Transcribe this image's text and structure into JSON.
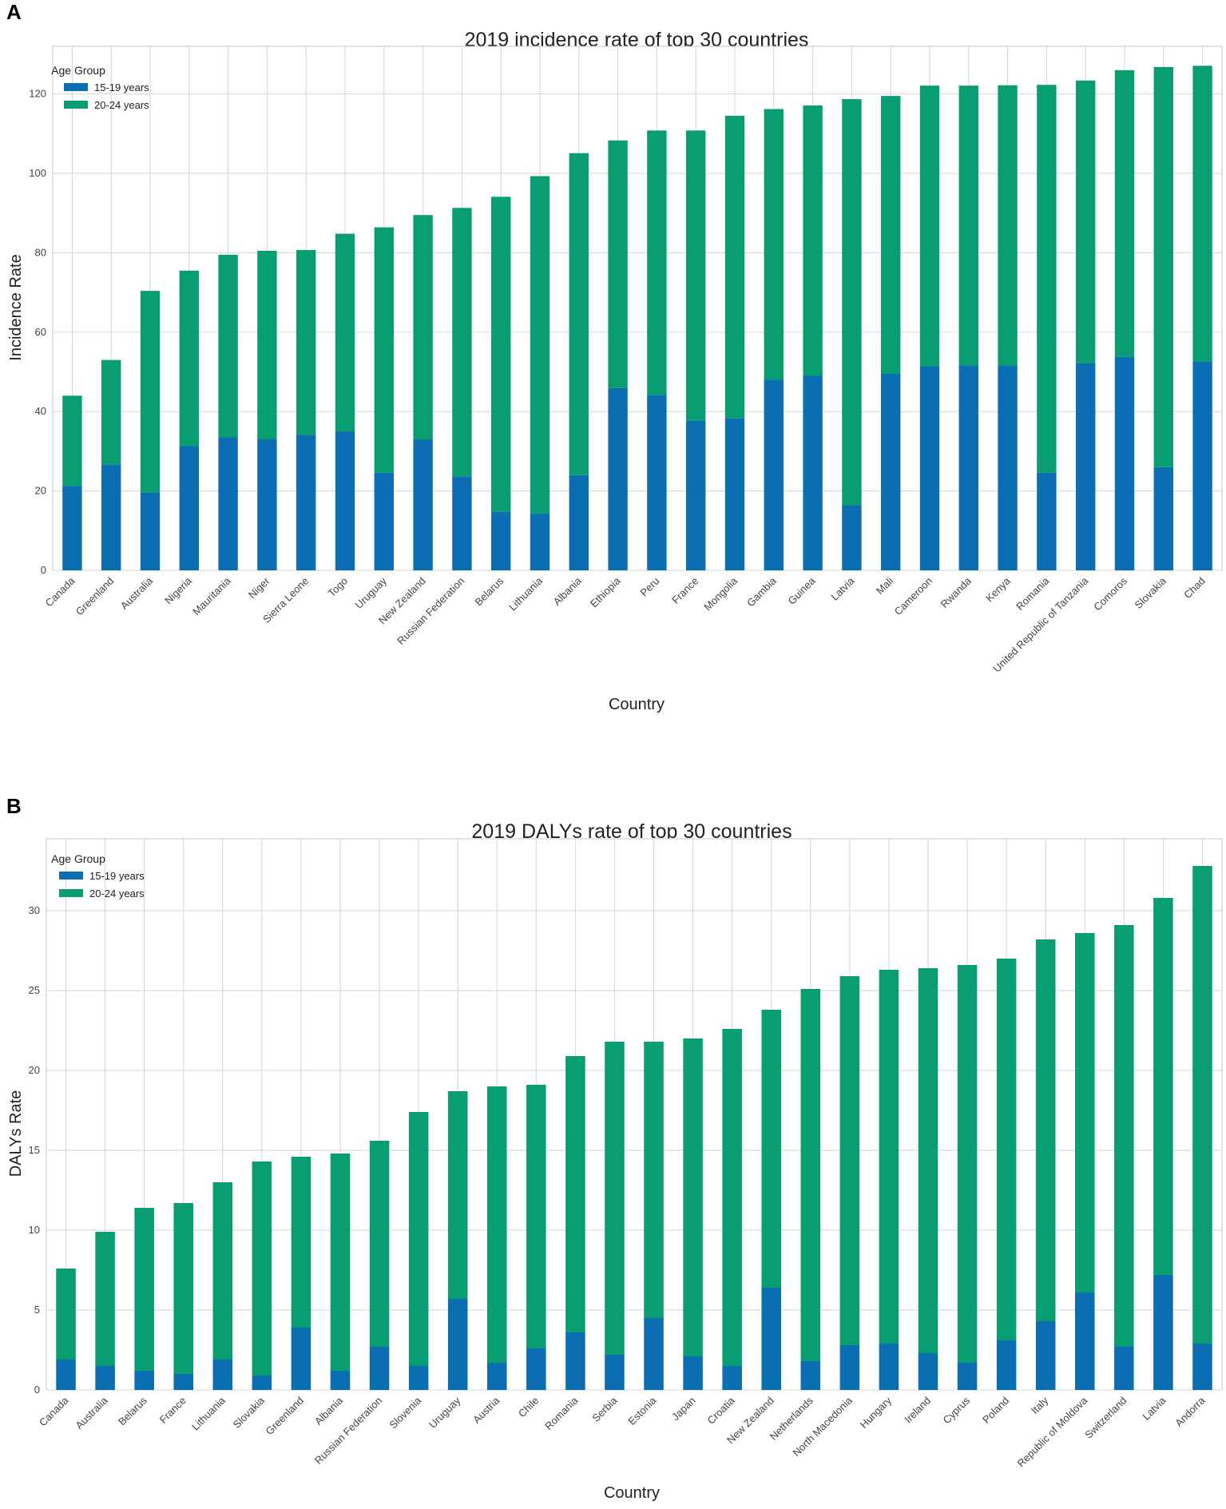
{
  "figure": {
    "panels": [
      {
        "letter": "A"
      },
      {
        "letter": "B"
      }
    ]
  },
  "chart_data": [
    {
      "type": "bar",
      "stacked": true,
      "title": "2019 incidence rate of top 30 countries",
      "xlabel": "Country",
      "ylabel": "Incidence Rate",
      "ylim": [
        0,
        132
      ],
      "yticks": [
        0,
        20,
        40,
        60,
        80,
        100,
        120
      ],
      "grid": true,
      "legend": {
        "title": "Age Group",
        "position": "top-left"
      },
      "categories": [
        "Canada",
        "Greenland",
        "Australia",
        "Nigeria",
        "Mauritania",
        "Niger",
        "Sierra Leone",
        "Togo",
        "Uruguay",
        "New Zealand",
        "Russian Federation",
        "Belarus",
        "Lithuania",
        "Albania",
        "Ethiopia",
        "Peru",
        "France",
        "Mongolia",
        "Gambia",
        "Guinea",
        "Latvia",
        "Mali",
        "Cameroon",
        "Rwanda",
        "Kenya",
        "Romania",
        "United Republic of Tanzania",
        "Comoros",
        "Slovakia",
        "Chad"
      ],
      "series": [
        {
          "name": "15-19 years",
          "color": "#0b6db2",
          "values": [
            21.3,
            26.7,
            19.6,
            31.3,
            33.5,
            33.0,
            34.0,
            35.0,
            24.6,
            32.9,
            23.7,
            14.7,
            14.3,
            24.0,
            45.9,
            44.2,
            37.7,
            38.3,
            48.0,
            49.0,
            16.4,
            49.5,
            51.4,
            51.6,
            51.6,
            24.6,
            52.2,
            53.8,
            26.0,
            52.6
          ]
        },
        {
          "name": "20-24 years",
          "color": "#089e71",
          "values": [
            22.7,
            26.3,
            50.8,
            44.2,
            46.0,
            47.5,
            46.7,
            49.8,
            61.8,
            56.6,
            67.6,
            79.4,
            85.0,
            81.1,
            62.4,
            66.6,
            73.1,
            76.2,
            68.2,
            68.1,
            102.3,
            70.0,
            70.7,
            70.5,
            70.6,
            97.7,
            71.2,
            72.2,
            100.8,
            74.5
          ]
        }
      ]
    },
    {
      "type": "bar",
      "stacked": true,
      "title": "2019 DALYs rate of top 30 countries",
      "xlabel": "Country",
      "ylabel": "DALYs Rate",
      "ylim": [
        0,
        34.5
      ],
      "yticks": [
        0,
        5,
        10,
        15,
        20,
        25,
        30
      ],
      "grid": true,
      "legend": {
        "title": "Age Group",
        "position": "top-left"
      },
      "categories": [
        "Canada",
        "Australia",
        "Belarus",
        "France",
        "Lithuania",
        "Slovakia",
        "Greenland",
        "Albania",
        "Russian Federation",
        "Slovenia",
        "Uruguay",
        "Austria",
        "Chile",
        "Romania",
        "Serbia",
        "Estonia",
        "Japan",
        "Croatia",
        "New Zealand",
        "Netherlands",
        "North Macedonia",
        "Hungary",
        "Ireland",
        "Cyprus",
        "Poland",
        "Italy",
        "Republic of Moldova",
        "Switzerland",
        "Latvia",
        "Andorra"
      ],
      "series": [
        {
          "name": "15-19 years",
          "color": "#0b6db2",
          "values": [
            1.9,
            1.5,
            1.2,
            1.0,
            1.9,
            0.9,
            3.9,
            1.2,
            2.7,
            1.5,
            5.7,
            1.7,
            2.6,
            3.6,
            2.2,
            4.5,
            2.1,
            1.5,
            6.4,
            1.8,
            2.8,
            2.9,
            2.3,
            1.7,
            3.1,
            4.3,
            6.1,
            2.7,
            7.2,
            2.9
          ]
        },
        {
          "name": "20-24 years",
          "color": "#089e71",
          "values": [
            5.7,
            8.4,
            10.2,
            10.7,
            11.1,
            13.4,
            10.7,
            13.6,
            12.9,
            15.9,
            13.0,
            17.3,
            16.5,
            17.3,
            19.6,
            17.3,
            19.9,
            21.1,
            17.4,
            23.3,
            23.1,
            23.4,
            24.1,
            24.9,
            23.9,
            23.9,
            22.5,
            26.4,
            23.6,
            29.9
          ]
        }
      ]
    }
  ]
}
